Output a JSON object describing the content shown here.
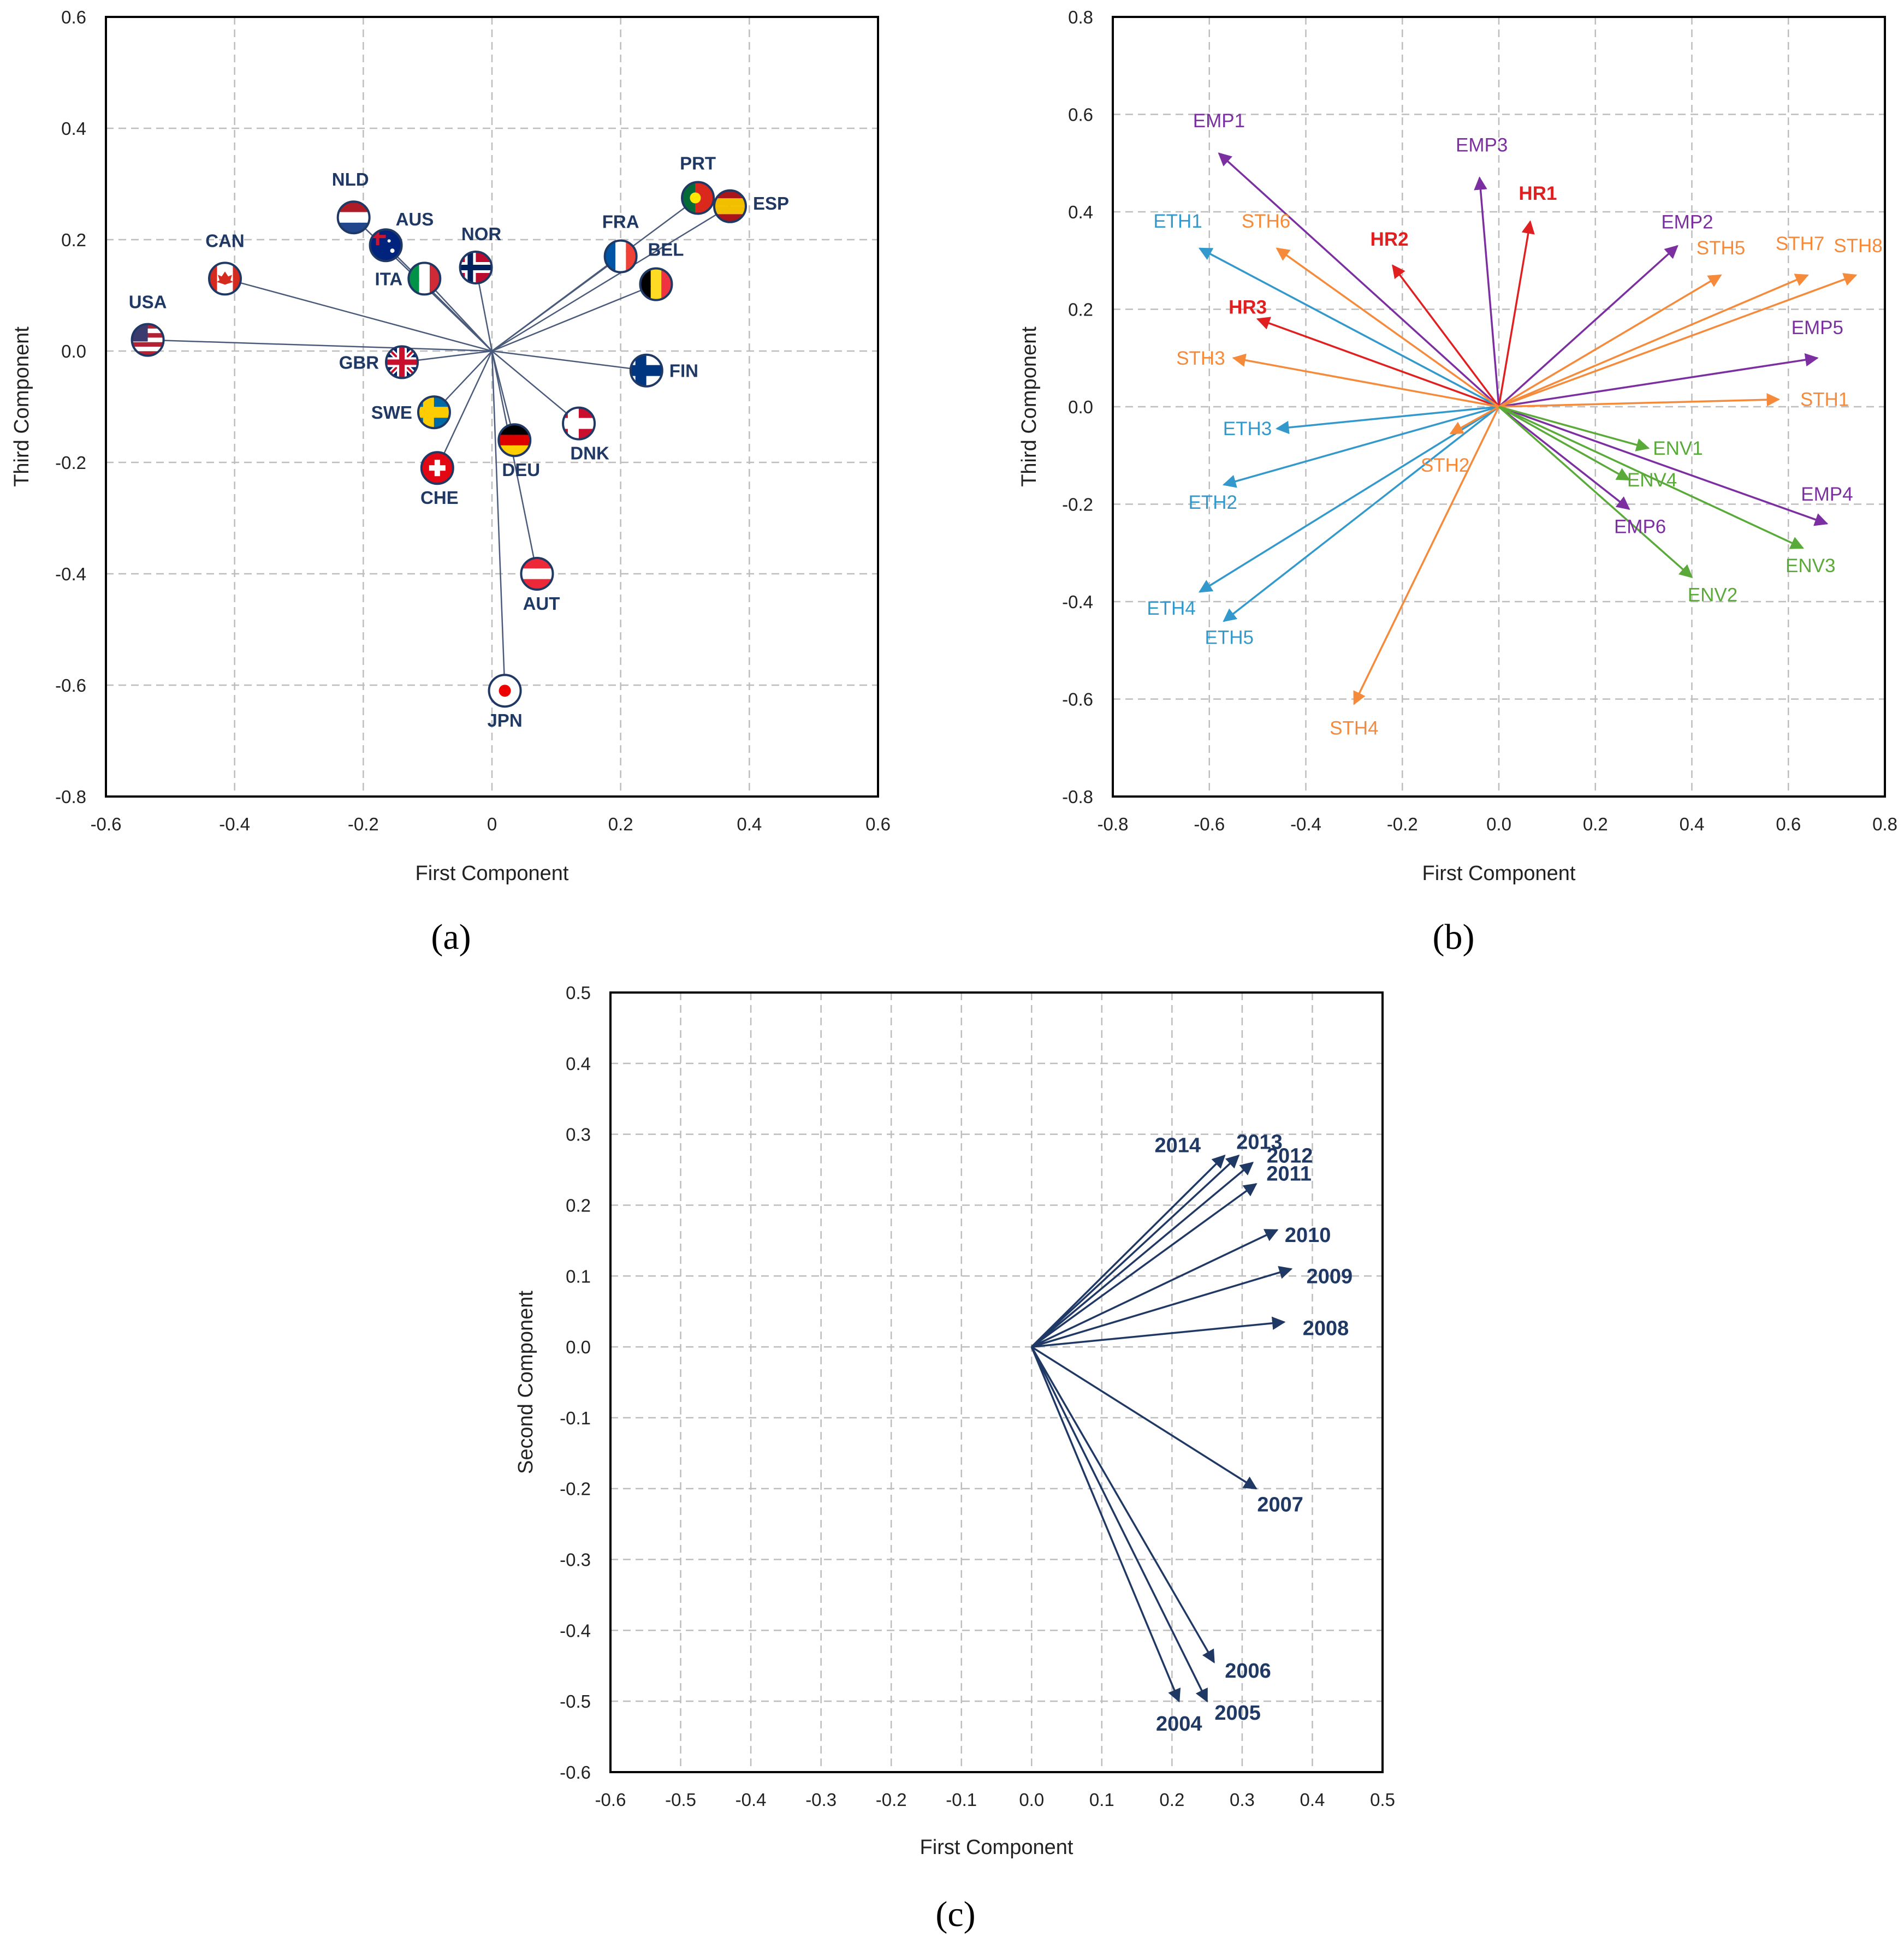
{
  "colors": {
    "navy": "#1f3864",
    "eth": "#3399cc",
    "sth": "#f58a3a",
    "hr": "#e02020",
    "emp": "#7b2fa0",
    "env": "#5aaa3a",
    "grid": "#bdbdbd",
    "axis": "#000000"
  },
  "chart_data": [
    {
      "id": "a",
      "panel_label": "(a)",
      "type": "scatter",
      "title": "",
      "xlabel": "First Component",
      "ylabel": "Third Component",
      "xlim": [
        -0.6,
        0.6
      ],
      "ylim": [
        -0.8,
        0.6
      ],
      "xticks": [
        -0.6,
        -0.4,
        -0.2,
        0,
        0.2,
        0.4,
        0.6
      ],
      "xtick_labels": [
        "-0.6",
        "-0.4",
        "-0.2",
        "0",
        "0.2",
        "0.4",
        "0.6"
      ],
      "yticks": [
        -0.8,
        -0.6,
        -0.4,
        -0.2,
        0,
        0.2,
        0.4,
        0.6
      ],
      "ytick_labels": [
        "-0.8",
        "-0.6",
        "-0.4",
        "-0.2",
        "0.0",
        "0.2",
        "0.4",
        "0.6"
      ],
      "grid": true,
      "points": [
        {
          "label": "USA",
          "x": -0.535,
          "y": 0.02,
          "flag": "us-flag-icon"
        },
        {
          "label": "CAN",
          "x": -0.415,
          "y": 0.13,
          "flag": "canada-flag-icon"
        },
        {
          "label": "NLD",
          "x": -0.215,
          "y": 0.24,
          "flag": "netherlands-flag-icon"
        },
        {
          "label": "AUS",
          "x": -0.165,
          "y": 0.19,
          "flag": "australia-flag-icon"
        },
        {
          "label": "ITA",
          "x": -0.105,
          "y": 0.13,
          "flag": "italy-flag-icon"
        },
        {
          "label": "NOR",
          "x": -0.025,
          "y": 0.15,
          "flag": "norway-flag-icon"
        },
        {
          "label": "GBR",
          "x": -0.14,
          "y": -0.02,
          "flag": "uk-flag-icon"
        },
        {
          "label": "SWE",
          "x": -0.09,
          "y": -0.11,
          "flag": "sweden-flag-icon"
        },
        {
          "label": "CHE",
          "x": -0.085,
          "y": -0.21,
          "flag": "switzerland-flag-icon"
        },
        {
          "label": "DEU",
          "x": 0.035,
          "y": -0.16,
          "flag": "germany-flag-icon"
        },
        {
          "label": "AUT",
          "x": 0.07,
          "y": -0.4,
          "flag": "austria-flag-icon"
        },
        {
          "label": "JPN",
          "x": 0.02,
          "y": -0.61,
          "flag": "japan-flag-icon"
        },
        {
          "label": "DNK",
          "x": 0.135,
          "y": -0.13,
          "flag": "denmark-flag-icon"
        },
        {
          "label": "FRA",
          "x": 0.2,
          "y": 0.17,
          "flag": "france-flag-icon"
        },
        {
          "label": "BEL",
          "x": 0.255,
          "y": 0.12,
          "flag": "belgium-flag-icon"
        },
        {
          "label": "FIN",
          "x": 0.24,
          "y": -0.035,
          "flag": "finland-flag-icon"
        },
        {
          "label": "PRT",
          "x": 0.32,
          "y": 0.275,
          "flag": "portugal-flag-icon"
        },
        {
          "label": "ESP",
          "x": 0.37,
          "y": 0.26,
          "flag": "spain-flag-icon"
        }
      ]
    },
    {
      "id": "b",
      "panel_label": "(b)",
      "type": "biplot",
      "title": "",
      "xlabel": "First Component",
      "ylabel": "Third Component",
      "xlim": [
        -0.8,
        0.8
      ],
      "ylim": [
        -0.8,
        0.8
      ],
      "xticks": [
        -0.8,
        -0.6,
        -0.4,
        -0.2,
        0,
        0.2,
        0.4,
        0.6,
        0.8
      ],
      "xtick_labels": [
        "-0.8",
        "-0.6",
        "-0.4",
        "-0.2",
        "0.0",
        "0.2",
        "0.4",
        "0.6",
        "0.8"
      ],
      "yticks": [
        -0.8,
        -0.6,
        -0.4,
        -0.2,
        0,
        0.2,
        0.4,
        0.6,
        0.8
      ],
      "ytick_labels": [
        "-0.8",
        "-0.6",
        "-0.4",
        "-0.2",
        "0.0",
        "0.2",
        "0.4",
        "0.6",
        "0.8"
      ],
      "grid": true,
      "vectors": [
        {
          "label": "EMP1",
          "group": "emp",
          "x": -0.58,
          "y": 0.52
        },
        {
          "label": "EMP2",
          "group": "emp",
          "x": 0.37,
          "y": 0.33
        },
        {
          "label": "EMP3",
          "group": "emp",
          "x": -0.04,
          "y": 0.47
        },
        {
          "label": "EMP4",
          "group": "emp",
          "x": 0.68,
          "y": -0.24
        },
        {
          "label": "EMP5",
          "group": "emp",
          "x": 0.66,
          "y": 0.1
        },
        {
          "label": "EMP6",
          "group": "emp",
          "x": 0.27,
          "y": -0.21
        },
        {
          "label": "HR1",
          "group": "hr",
          "x": 0.065,
          "y": 0.38
        },
        {
          "label": "HR2",
          "group": "hr",
          "x": -0.22,
          "y": 0.29
        },
        {
          "label": "HR3",
          "group": "hr",
          "x": -0.5,
          "y": 0.18
        },
        {
          "label": "ETH1",
          "group": "eth",
          "x": -0.62,
          "y": 0.325
        },
        {
          "label": "ETH2",
          "group": "eth",
          "x": -0.57,
          "y": -0.16
        },
        {
          "label": "ETH3",
          "group": "eth",
          "x": -0.46,
          "y": -0.045
        },
        {
          "label": "ETH4",
          "group": "eth",
          "x": -0.62,
          "y": -0.38
        },
        {
          "label": "ETH5",
          "group": "eth",
          "x": -0.57,
          "y": -0.44
        },
        {
          "label": "STH1",
          "group": "sth",
          "x": 0.58,
          "y": 0.015
        },
        {
          "label": "STH2",
          "group": "sth",
          "x": -0.1,
          "y": -0.055
        },
        {
          "label": "STH3",
          "group": "sth",
          "x": -0.55,
          "y": 0.1
        },
        {
          "label": "STH4",
          "group": "sth",
          "x": -0.3,
          "y": -0.61
        },
        {
          "label": "STH5",
          "group": "sth",
          "x": 0.46,
          "y": 0.27
        },
        {
          "label": "STH6",
          "group": "sth",
          "x": -0.46,
          "y": 0.325
        },
        {
          "label": "STH7",
          "group": "sth",
          "x": 0.64,
          "y": 0.27
        },
        {
          "label": "STH8",
          "group": "sth",
          "x": 0.74,
          "y": 0.27
        },
        {
          "label": "ENV1",
          "group": "env",
          "x": 0.31,
          "y": -0.085
        },
        {
          "label": "ENV2",
          "group": "env",
          "x": 0.4,
          "y": -0.35
        },
        {
          "label": "ENV3",
          "group": "env",
          "x": 0.63,
          "y": -0.29
        },
        {
          "label": "ENV4",
          "group": "env",
          "x": 0.27,
          "y": -0.15
        }
      ]
    },
    {
      "id": "c",
      "panel_label": "(c)",
      "type": "biplot",
      "title": "",
      "xlabel": "First Component",
      "ylabel": "Second Component",
      "xlim": [
        -0.6,
        0.5
      ],
      "ylim": [
        -0.6,
        0.5
      ],
      "xticks": [
        -0.6,
        -0.5,
        -0.4,
        -0.3,
        -0.2,
        -0.1,
        0,
        0.1,
        0.2,
        0.3,
        0.4,
        0.5
      ],
      "xtick_labels": [
        "-0.6",
        "-0.5",
        "-0.4",
        "-0.3",
        "-0.2",
        "-0.1",
        "0.0",
        "0.1",
        "0.2",
        "0.3",
        "0.4",
        "0.5"
      ],
      "yticks": [
        -0.6,
        -0.5,
        -0.4,
        -0.3,
        -0.2,
        -0.1,
        0,
        0.1,
        0.2,
        0.3,
        0.4,
        0.5
      ],
      "ytick_labels": [
        "-0.6",
        "-0.5",
        "-0.4",
        "-0.3",
        "-0.2",
        "-0.1",
        "0.0",
        "0.1",
        "0.2",
        "0.3",
        "0.4",
        "0.5"
      ],
      "grid": true,
      "vectors": [
        {
          "label": "2004",
          "x": 0.21,
          "y": -0.5
        },
        {
          "label": "2005",
          "x": 0.25,
          "y": -0.5
        },
        {
          "label": "2006",
          "x": 0.26,
          "y": -0.445
        },
        {
          "label": "2007",
          "x": 0.32,
          "y": -0.2
        },
        {
          "label": "2008",
          "x": 0.36,
          "y": 0.035
        },
        {
          "label": "2009",
          "x": 0.37,
          "y": 0.11
        },
        {
          "label": "2010",
          "x": 0.35,
          "y": 0.165
        },
        {
          "label": "2011",
          "x": 0.32,
          "y": 0.23
        },
        {
          "label": "2012",
          "x": 0.315,
          "y": 0.26
        },
        {
          "label": "2013",
          "x": 0.295,
          "y": 0.27
        },
        {
          "label": "2014",
          "x": 0.275,
          "y": 0.27
        }
      ]
    }
  ]
}
